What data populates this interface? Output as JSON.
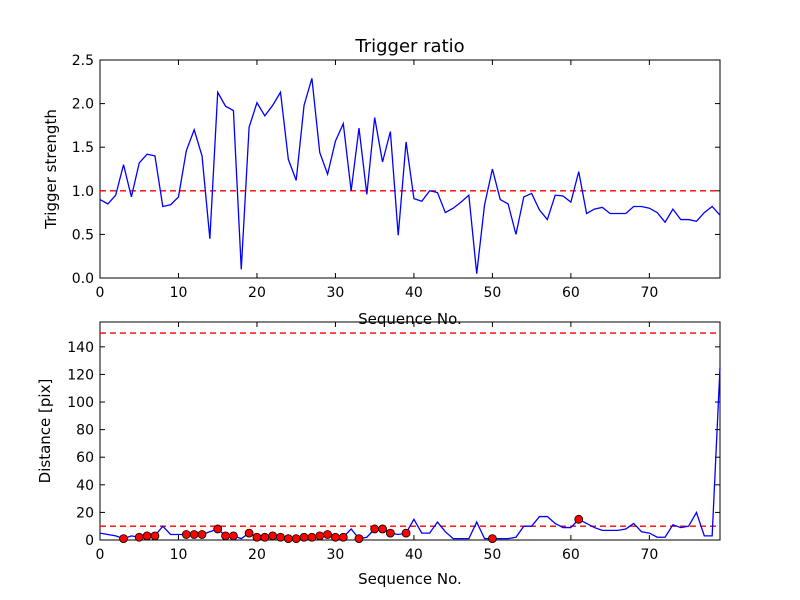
{
  "colors": {
    "line": "#0000ff",
    "threshold": "#ff0000",
    "marker_fill": "#ff0000",
    "marker_edge": "#000000"
  },
  "chart_data": [
    {
      "type": "line",
      "title": "Trigger ratio",
      "xlabel": "Sequence No.",
      "ylabel": "Trigger strength",
      "xlim": [
        0,
        79
      ],
      "ylim": [
        0,
        2.5
      ],
      "xticks": [
        0,
        10,
        20,
        30,
        40,
        50,
        60,
        70
      ],
      "yticks": [
        0.0,
        0.5,
        1.0,
        1.5,
        2.0,
        2.5
      ],
      "ytick_labels": [
        "0.0",
        "0.5",
        "1.0",
        "1.5",
        "2.0",
        "2.5"
      ],
      "threshold": 1.0,
      "series": [
        {
          "name": "trigger strength",
          "x": [
            0,
            1,
            2,
            3,
            4,
            5,
            6,
            7,
            8,
            9,
            10,
            11,
            12,
            13,
            14,
            15,
            16,
            17,
            18,
            19,
            20,
            21,
            22,
            23,
            24,
            25,
            26,
            27,
            28,
            29,
            30,
            31,
            32,
            33,
            34,
            35,
            36,
            37,
            38,
            39,
            40,
            41,
            42,
            43,
            44,
            45,
            46,
            47,
            48,
            49,
            50,
            51,
            52,
            53,
            54,
            55,
            56,
            57,
            58,
            59,
            60,
            61,
            62,
            63,
            64,
            65,
            66,
            67,
            68,
            69,
            70,
            71,
            72,
            73,
            74,
            75,
            76,
            77,
            78,
            79
          ],
          "values": [
            0.9,
            0.85,
            0.95,
            1.3,
            0.93,
            1.32,
            1.42,
            1.4,
            0.82,
            0.84,
            0.93,
            1.46,
            1.7,
            1.4,
            0.45,
            2.13,
            1.97,
            1.92,
            0.1,
            1.73,
            2.01,
            1.86,
            1.98,
            2.13,
            1.36,
            1.12,
            1.98,
            2.29,
            1.44,
            1.19,
            1.57,
            1.77,
            1.0,
            1.72,
            0.96,
            1.84,
            1.33,
            1.68,
            0.49,
            1.56,
            0.91,
            0.88,
            1.0,
            0.98,
            0.75,
            0.8,
            0.87,
            0.95,
            0.05,
            0.84,
            1.25,
            0.9,
            0.85,
            0.5,
            0.93,
            0.97,
            0.78,
            0.67,
            0.95,
            0.94,
            0.87,
            1.22,
            0.74,
            0.79,
            0.81,
            0.74,
            0.74,
            0.74,
            0.82,
            0.82,
            0.8,
            0.75,
            0.64,
            0.79,
            0.67,
            0.67,
            0.65,
            0.75,
            0.82,
            0.72
          ]
        }
      ]
    },
    {
      "type": "line",
      "title": "",
      "xlabel": "Sequence No.",
      "ylabel": "Distance [pix]",
      "xlim": [
        0,
        79
      ],
      "ylim": [
        0,
        158
      ],
      "xticks": [
        0,
        10,
        20,
        30,
        40,
        50,
        60,
        70
      ],
      "yticks": [
        0,
        20,
        40,
        60,
        80,
        100,
        120,
        140
      ],
      "ytick_labels": [
        "0",
        "20",
        "40",
        "60",
        "80",
        "100",
        "120",
        "140"
      ],
      "thresholds": [
        10,
        150
      ],
      "series": [
        {
          "name": "distance",
          "x": [
            0,
            1,
            2,
            3,
            4,
            5,
            6,
            7,
            8,
            9,
            10,
            11,
            12,
            13,
            14,
            15,
            16,
            17,
            18,
            19,
            20,
            21,
            22,
            23,
            24,
            25,
            26,
            27,
            28,
            29,
            30,
            31,
            32,
            33,
            34,
            35,
            36,
            37,
            38,
            39,
            40,
            41,
            42,
            43,
            44,
            45,
            46,
            47,
            48,
            49,
            50,
            51,
            52,
            53,
            54,
            55,
            56,
            57,
            58,
            59,
            60,
            61,
            62,
            63,
            64,
            65,
            66,
            67,
            68,
            69,
            70,
            71,
            72,
            73,
            74,
            75,
            76,
            77,
            78,
            79
          ],
          "values": [
            5,
            4,
            3,
            1,
            3,
            2,
            3,
            3,
            10,
            4,
            4,
            4,
            4,
            4,
            6,
            8,
            3,
            3,
            1,
            5,
            2,
            2,
            3,
            2,
            1,
            1,
            2,
            2,
            3,
            4,
            2,
            2,
            8,
            1,
            2,
            8,
            8,
            5,
            4,
            5,
            15,
            5,
            5,
            13,
            6,
            1,
            1,
            1,
            13,
            1,
            1,
            1,
            1,
            2,
            10,
            10,
            17,
            17,
            12,
            9,
            9,
            15,
            12,
            9,
            7,
            7,
            7,
            8,
            12,
            6,
            5,
            2,
            2,
            11,
            9,
            10,
            20,
            3,
            3,
            125
          ]
        }
      ],
      "markers": {
        "x": [
          3,
          5,
          6,
          7,
          11,
          12,
          13,
          15,
          16,
          17,
          19,
          20,
          21,
          22,
          23,
          24,
          25,
          26,
          27,
          28,
          29,
          30,
          31,
          33,
          35,
          36,
          37,
          39,
          50,
          61
        ],
        "values": [
          1,
          2,
          3,
          3,
          4,
          4,
          4,
          8,
          3,
          3,
          5,
          2,
          2,
          3,
          2,
          1,
          1,
          2,
          2,
          3,
          4,
          2,
          2,
          1,
          8,
          8,
          5,
          5,
          1,
          15
        ]
      }
    }
  ]
}
